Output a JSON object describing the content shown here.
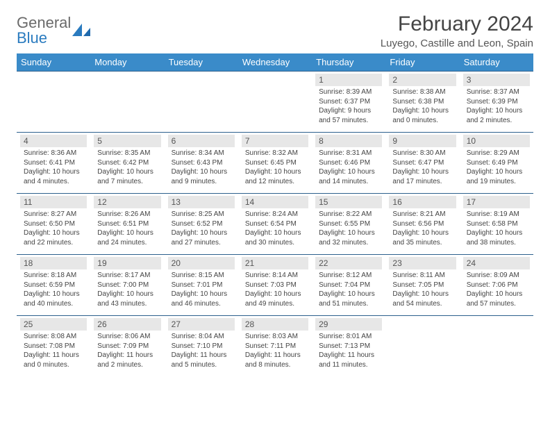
{
  "brand": {
    "name_a": "General",
    "name_b": "Blue"
  },
  "title": "February 2024",
  "location": "Luyego, Castille and Leon, Spain",
  "colors": {
    "header_bg": "#3a8bc9",
    "header_text": "#ffffff",
    "row_border": "#2b5f8c",
    "daynum_bg": "#e7e7e7",
    "body_text": "#444444",
    "brand_gray": "#6a6a6a",
    "brand_blue": "#2a7bbf"
  },
  "day_names": [
    "Sunday",
    "Monday",
    "Tuesday",
    "Wednesday",
    "Thursday",
    "Friday",
    "Saturday"
  ],
  "weeks": [
    [
      null,
      null,
      null,
      null,
      {
        "n": "1",
        "sr": "8:39 AM",
        "ss": "6:37 PM",
        "dl": "9 hours and 57 minutes."
      },
      {
        "n": "2",
        "sr": "8:38 AM",
        "ss": "6:38 PM",
        "dl": "10 hours and 0 minutes."
      },
      {
        "n": "3",
        "sr": "8:37 AM",
        "ss": "6:39 PM",
        "dl": "10 hours and 2 minutes."
      }
    ],
    [
      {
        "n": "4",
        "sr": "8:36 AM",
        "ss": "6:41 PM",
        "dl": "10 hours and 4 minutes."
      },
      {
        "n": "5",
        "sr": "8:35 AM",
        "ss": "6:42 PM",
        "dl": "10 hours and 7 minutes."
      },
      {
        "n": "6",
        "sr": "8:34 AM",
        "ss": "6:43 PM",
        "dl": "10 hours and 9 minutes."
      },
      {
        "n": "7",
        "sr": "8:32 AM",
        "ss": "6:45 PM",
        "dl": "10 hours and 12 minutes."
      },
      {
        "n": "8",
        "sr": "8:31 AM",
        "ss": "6:46 PM",
        "dl": "10 hours and 14 minutes."
      },
      {
        "n": "9",
        "sr": "8:30 AM",
        "ss": "6:47 PM",
        "dl": "10 hours and 17 minutes."
      },
      {
        "n": "10",
        "sr": "8:29 AM",
        "ss": "6:49 PM",
        "dl": "10 hours and 19 minutes."
      }
    ],
    [
      {
        "n": "11",
        "sr": "8:27 AM",
        "ss": "6:50 PM",
        "dl": "10 hours and 22 minutes."
      },
      {
        "n": "12",
        "sr": "8:26 AM",
        "ss": "6:51 PM",
        "dl": "10 hours and 24 minutes."
      },
      {
        "n": "13",
        "sr": "8:25 AM",
        "ss": "6:52 PM",
        "dl": "10 hours and 27 minutes."
      },
      {
        "n": "14",
        "sr": "8:24 AM",
        "ss": "6:54 PM",
        "dl": "10 hours and 30 minutes."
      },
      {
        "n": "15",
        "sr": "8:22 AM",
        "ss": "6:55 PM",
        "dl": "10 hours and 32 minutes."
      },
      {
        "n": "16",
        "sr": "8:21 AM",
        "ss": "6:56 PM",
        "dl": "10 hours and 35 minutes."
      },
      {
        "n": "17",
        "sr": "8:19 AM",
        "ss": "6:58 PM",
        "dl": "10 hours and 38 minutes."
      }
    ],
    [
      {
        "n": "18",
        "sr": "8:18 AM",
        "ss": "6:59 PM",
        "dl": "10 hours and 40 minutes."
      },
      {
        "n": "19",
        "sr": "8:17 AM",
        "ss": "7:00 PM",
        "dl": "10 hours and 43 minutes."
      },
      {
        "n": "20",
        "sr": "8:15 AM",
        "ss": "7:01 PM",
        "dl": "10 hours and 46 minutes."
      },
      {
        "n": "21",
        "sr": "8:14 AM",
        "ss": "7:03 PM",
        "dl": "10 hours and 49 minutes."
      },
      {
        "n": "22",
        "sr": "8:12 AM",
        "ss": "7:04 PM",
        "dl": "10 hours and 51 minutes."
      },
      {
        "n": "23",
        "sr": "8:11 AM",
        "ss": "7:05 PM",
        "dl": "10 hours and 54 minutes."
      },
      {
        "n": "24",
        "sr": "8:09 AM",
        "ss": "7:06 PM",
        "dl": "10 hours and 57 minutes."
      }
    ],
    [
      {
        "n": "25",
        "sr": "8:08 AM",
        "ss": "7:08 PM",
        "dl": "11 hours and 0 minutes."
      },
      {
        "n": "26",
        "sr": "8:06 AM",
        "ss": "7:09 PM",
        "dl": "11 hours and 2 minutes."
      },
      {
        "n": "27",
        "sr": "8:04 AM",
        "ss": "7:10 PM",
        "dl": "11 hours and 5 minutes."
      },
      {
        "n": "28",
        "sr": "8:03 AM",
        "ss": "7:11 PM",
        "dl": "11 hours and 8 minutes."
      },
      {
        "n": "29",
        "sr": "8:01 AM",
        "ss": "7:13 PM",
        "dl": "11 hours and 11 minutes."
      },
      null,
      null
    ]
  ],
  "labels": {
    "sunrise": "Sunrise: ",
    "sunset": "Sunset: ",
    "daylight": "Daylight: "
  }
}
